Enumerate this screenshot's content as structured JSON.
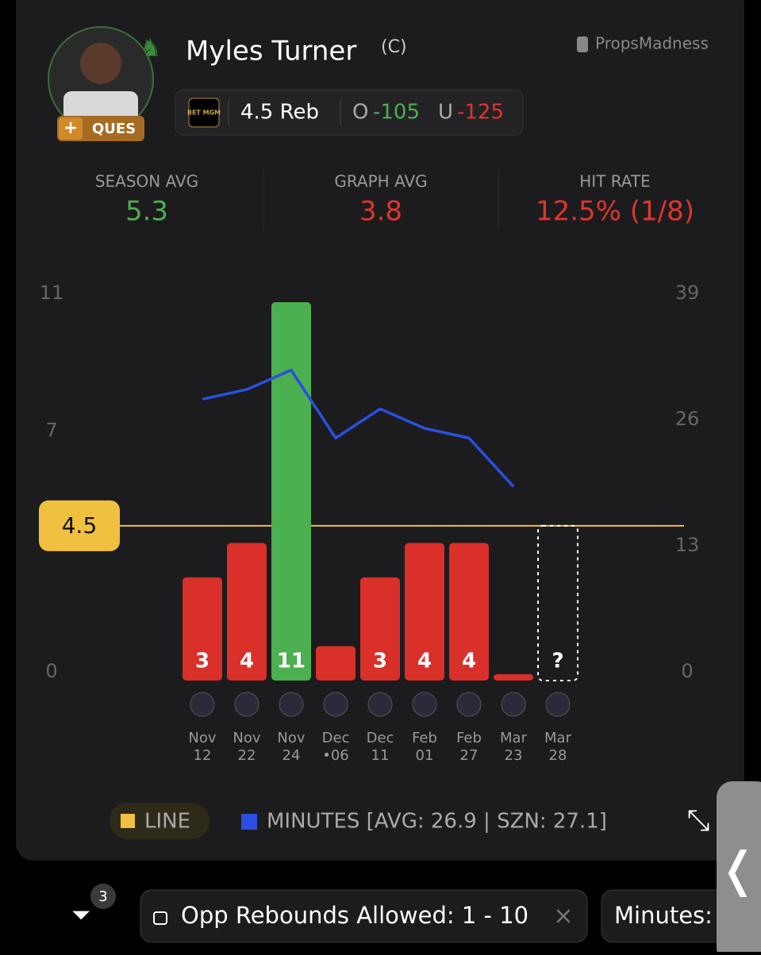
{
  "header": {
    "name": "Myles Turner",
    "position": "(C)",
    "status": "QUES",
    "brand": "PropsMadness"
  },
  "quote": {
    "book": "BET MGM",
    "line": "4.5 Reb",
    "over_label": "O",
    "over_odds": "-105",
    "under_label": "U",
    "under_odds": "-125"
  },
  "stats": [
    {
      "label": "SEASON AVG",
      "value": "5.3"
    },
    {
      "label": "GRAPH AVG",
      "value": "3.8"
    },
    {
      "label": "HIT RATE",
      "value": "12.5% (1/8)"
    }
  ],
  "chart_data": {
    "type": "bar",
    "months": [
      "Nov",
      "Nov",
      "Nov",
      "Dec",
      "Dec",
      "Feb",
      "Feb",
      "Mar",
      "Mar"
    ],
    "days": [
      "12",
      "22",
      "24",
      "•06",
      "11",
      "01",
      "27",
      "23",
      "28"
    ],
    "values": [
      3,
      4,
      11,
      1,
      3,
      4,
      4,
      0,
      null
    ],
    "value_labels": [
      "3",
      "4",
      "11",
      null,
      "3",
      "4",
      "4",
      null,
      "?"
    ],
    "minutes": [
      29,
      30,
      32,
      25,
      28,
      26,
      25,
      20,
      null
    ],
    "ylim": [
      0,
      11
    ],
    "yticks": [
      0,
      7,
      11
    ],
    "y2lim": [
      0,
      39
    ],
    "y2ticks": [
      0,
      13,
      26,
      39
    ],
    "line_value": 4.5,
    "legend": [
      "LINE",
      "MINUTES [AVG: 26.9 | SZN: 27.1]"
    ]
  },
  "filters": {
    "count": "3",
    "chips": [
      "Opp Rebounds Allowed: 1 - 10",
      "Minutes:"
    ]
  }
}
